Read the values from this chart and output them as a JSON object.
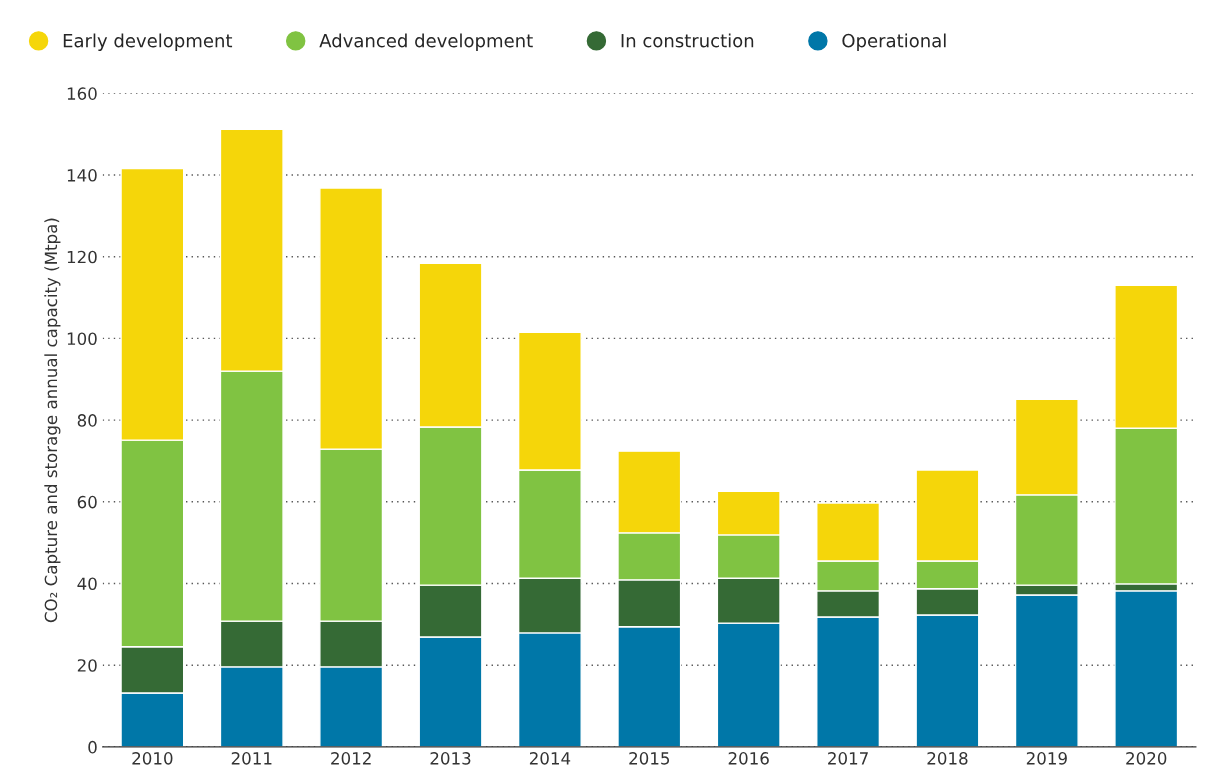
{
  "chart_data": {
    "type": "bar",
    "stacked": true,
    "ylabel": "CO₂ Capture and storage annual capacity (Mtpa)",
    "categories": [
      "2010",
      "2011",
      "2012",
      "2013",
      "2014",
      "2015",
      "2016",
      "2017",
      "2018",
      "2019",
      "2020"
    ],
    "series": [
      {
        "name": "Operational",
        "color": "#0077a8",
        "values": [
          13.2,
          19.6,
          19.6,
          26.9,
          27.9,
          29.4,
          30.3,
          31.8,
          32.3,
          37.2,
          38.2
        ]
      },
      {
        "name": "In construction",
        "color": "#356a35",
        "values": [
          11.3,
          11.2,
          11.2,
          12.7,
          13.4,
          11.5,
          11.0,
          6.4,
          6.4,
          2.4,
          1.7
        ]
      },
      {
        "name": "Advanced development",
        "color": "#80c342",
        "values": [
          50.6,
          61.2,
          42.1,
          38.7,
          26.5,
          11.5,
          10.6,
          7.3,
          6.8,
          22.1,
          38.1
        ]
      },
      {
        "name": "Early development",
        "color": "#f5d60a",
        "values": [
          66.5,
          59.2,
          63.9,
          40.1,
          33.7,
          20.0,
          10.7,
          14.2,
          22.3,
          23.4,
          35.0
        ]
      }
    ],
    "ylim": [
      0,
      160
    ],
    "yticks": [
      0,
      20,
      40,
      60,
      80,
      100,
      120,
      140,
      160
    ],
    "grid": "y",
    "legend": "top left"
  }
}
